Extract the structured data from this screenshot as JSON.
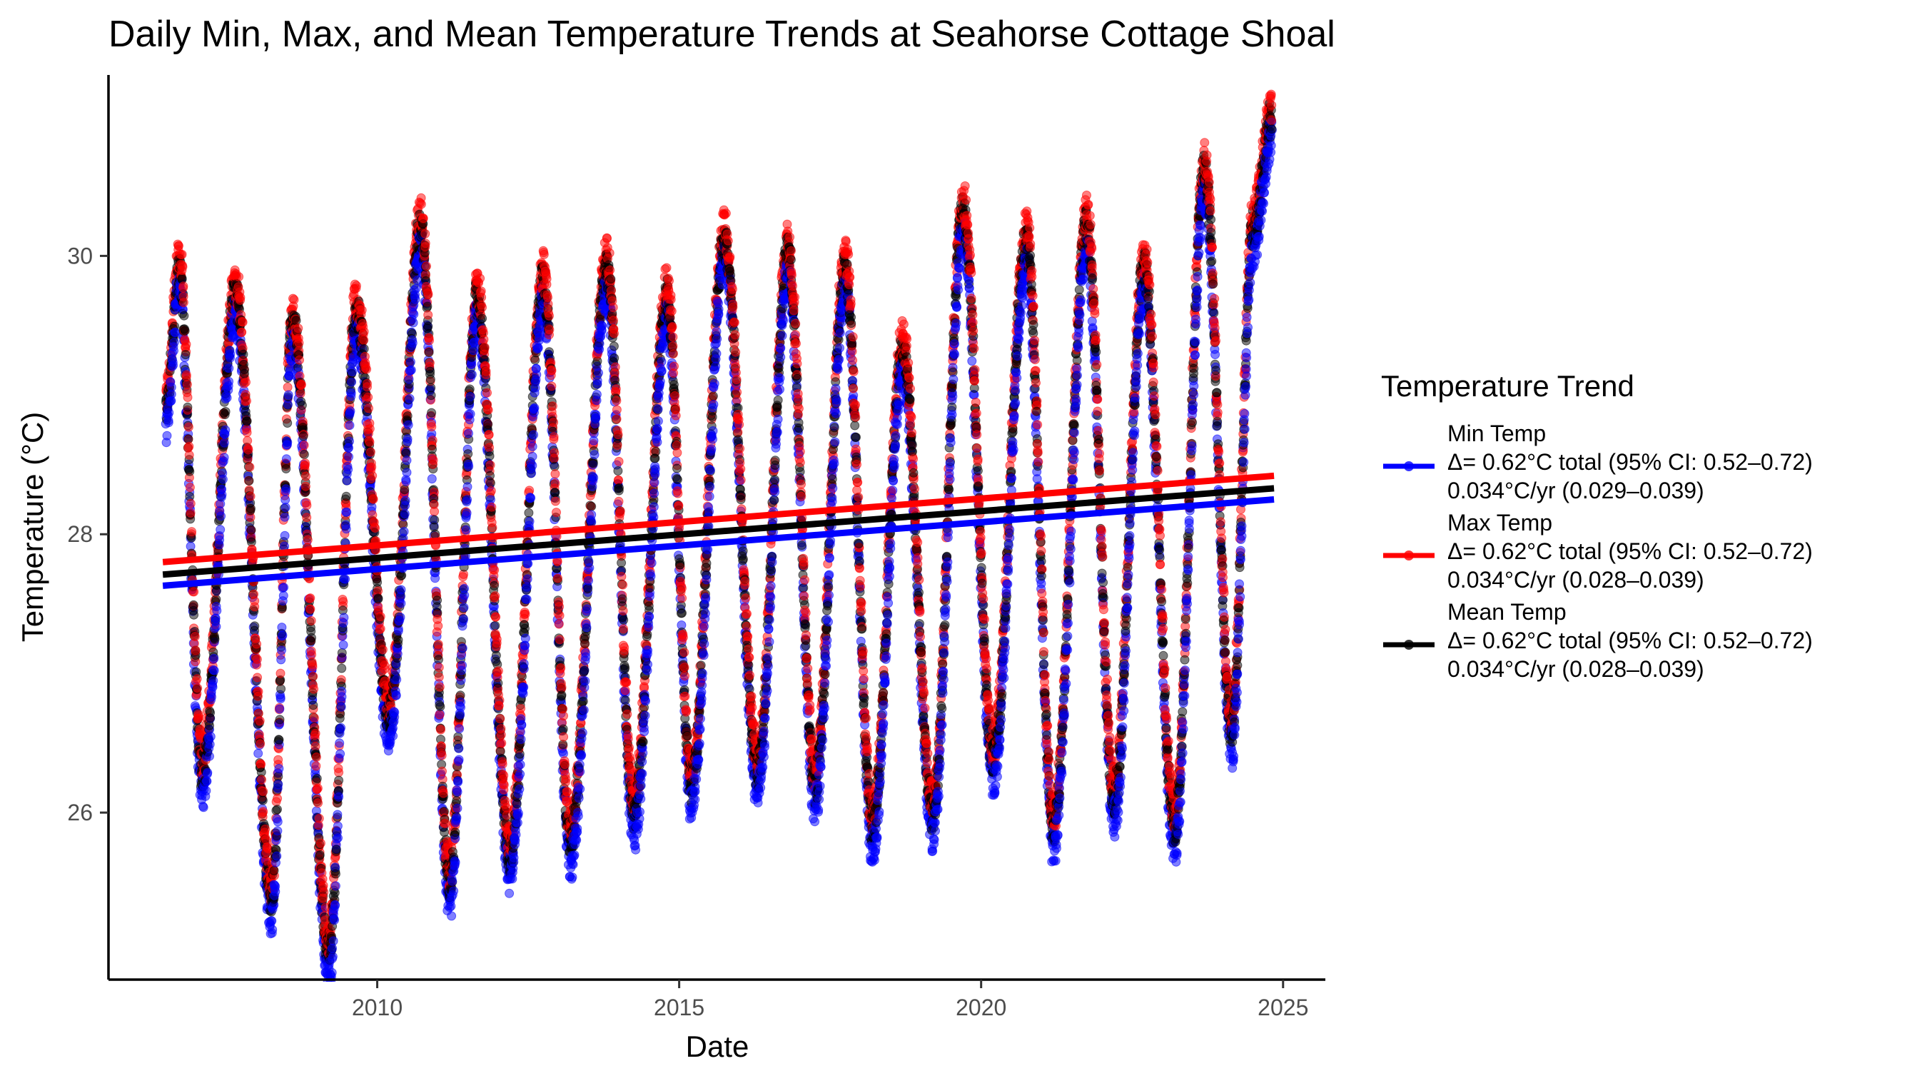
{
  "chart_data": {
    "type": "scatter",
    "title": "Daily Min, Max, and Mean Temperature Trends at Seahorse Cottage Shoal",
    "xlabel": "Date",
    "ylabel": "Temperature (°C)",
    "xlim": [
      2005.55,
      2025.7
    ],
    "ylim": [
      24.8,
      31.3
    ],
    "x_ticks": [
      2010,
      2015,
      2020,
      2025
    ],
    "x_tick_labels": [
      "2010",
      "2015",
      "2020",
      "2025"
    ],
    "y_ticks": [
      26,
      28,
      30
    ],
    "y_tick_labels": [
      "26",
      "28",
      "30"
    ],
    "grid": false,
    "legend": {
      "title": "Temperature Trend",
      "position": "right"
    },
    "seasonal_anchors": [
      [
        2006.5,
        28.9
      ],
      [
        2006.72,
        29.9
      ],
      [
        2007.1,
        26.3
      ],
      [
        2007.65,
        29.7
      ],
      [
        2008.25,
        25.4
      ],
      [
        2008.6,
        29.5
      ],
      [
        2009.2,
        25.0
      ],
      [
        2009.65,
        29.6
      ],
      [
        2010.2,
        26.7
      ],
      [
        2010.72,
        30.2
      ],
      [
        2011.2,
        25.5
      ],
      [
        2011.65,
        29.7
      ],
      [
        2012.2,
        25.7
      ],
      [
        2012.75,
        29.8
      ],
      [
        2013.2,
        25.8
      ],
      [
        2013.8,
        29.9
      ],
      [
        2014.25,
        26.0
      ],
      [
        2014.8,
        29.7
      ],
      [
        2015.2,
        26.2
      ],
      [
        2015.75,
        30.1
      ],
      [
        2016.3,
        26.3
      ],
      [
        2016.8,
        30.0
      ],
      [
        2017.25,
        26.2
      ],
      [
        2017.75,
        29.9
      ],
      [
        2018.2,
        25.9
      ],
      [
        2018.7,
        29.3
      ],
      [
        2019.2,
        26.0
      ],
      [
        2019.7,
        30.3
      ],
      [
        2020.2,
        26.4
      ],
      [
        2020.75,
        30.1
      ],
      [
        2021.2,
        25.9
      ],
      [
        2021.75,
        30.2
      ],
      [
        2022.2,
        26.1
      ],
      [
        2022.7,
        29.9
      ],
      [
        2023.2,
        25.9
      ],
      [
        2023.7,
        30.6
      ],
      [
        2024.15,
        26.6
      ],
      [
        2024.5,
        30.2
      ],
      [
        2024.82,
        31.0
      ]
    ],
    "series": [
      {
        "name": "Min Temp",
        "color": "#0000ff",
        "offset": -0.15,
        "trend_line": {
          "x": [
            2006.45,
            2024.85
          ],
          "y": [
            27.63,
            28.25
          ]
        },
        "legend_lines": [
          "Min Temp",
          "Δ= 0.62°C total (95% CI: 0.52–0.72)",
          "0.034°C/yr (0.029–0.039)"
        ]
      },
      {
        "name": "Max Temp",
        "color": "#ff0000",
        "offset": 0.1,
        "trend_line": {
          "x": [
            2006.45,
            2024.85
          ],
          "y": [
            27.8,
            28.42
          ]
        },
        "legend_lines": [
          "Max Temp",
          "Δ= 0.62°C total (95% CI: 0.52–0.72)",
          "0.034°C/yr (0.028–0.039)"
        ]
      },
      {
        "name": "Mean Temp",
        "color": "#000000",
        "offset": 0.0,
        "trend_line": {
          "x": [
            2006.45,
            2024.85
          ],
          "y": [
            27.71,
            28.33
          ]
        },
        "legend_lines": [
          "Mean Temp",
          "Δ= 0.62°C total (95% CI: 0.52–0.72)",
          "0.034°C/yr (0.028–0.039)"
        ]
      }
    ]
  }
}
